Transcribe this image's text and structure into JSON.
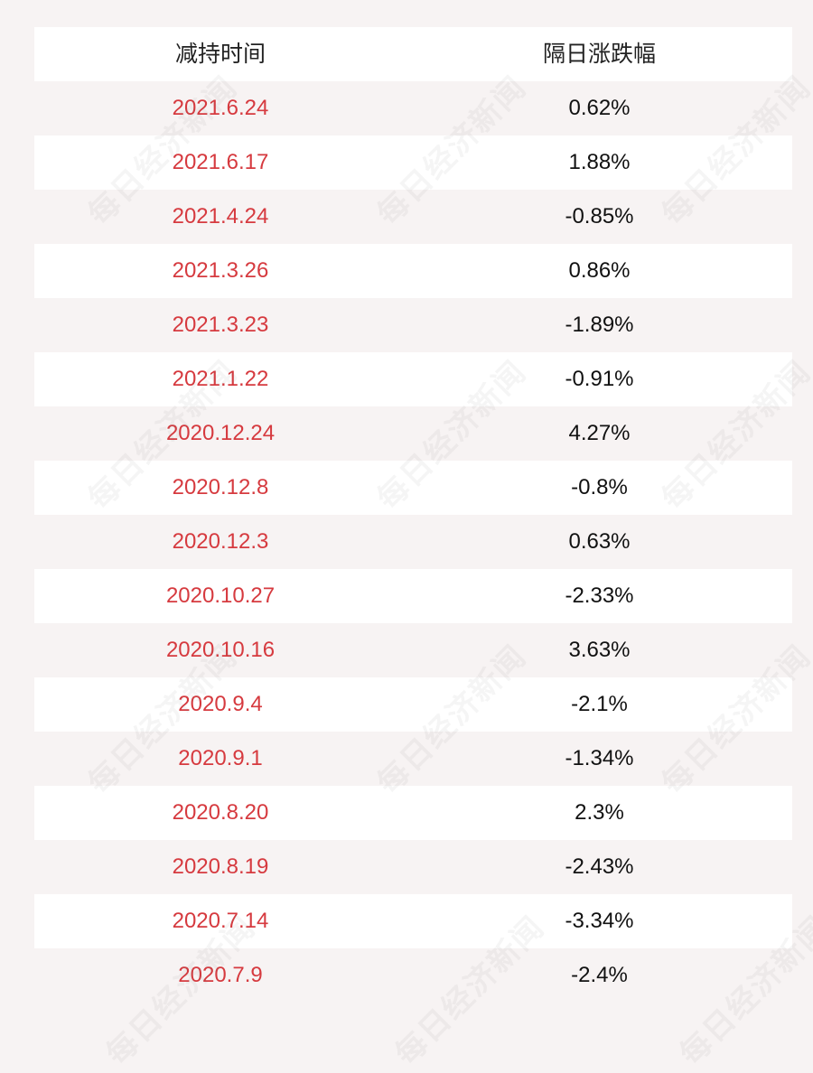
{
  "table": {
    "headers": [
      "减持时间",
      "隔日涨跌幅"
    ],
    "rows": [
      {
        "date": "2021.6.24",
        "change": "0.62%"
      },
      {
        "date": "2021.6.17",
        "change": "1.88%"
      },
      {
        "date": "2021.4.24",
        "change": "-0.85%"
      },
      {
        "date": "2021.3.26",
        "change": "0.86%"
      },
      {
        "date": "2021.3.23",
        "change": "-1.89%"
      },
      {
        "date": "2021.1.22",
        "change": "-0.91%"
      },
      {
        "date": "2020.12.24",
        "change": "4.27%"
      },
      {
        "date": "2020.12.8",
        "change": "-0.8%"
      },
      {
        "date": "2020.12.3",
        "change": "0.63%"
      },
      {
        "date": "2020.10.27",
        "change": "-2.33%"
      },
      {
        "date": "2020.10.16",
        "change": "3.63%"
      },
      {
        "date": "2020.9.4",
        "change": "-2.1%"
      },
      {
        "date": "2020.9.1",
        "change": "-1.34%"
      },
      {
        "date": "2020.8.20",
        "change": "2.3%"
      },
      {
        "date": "2020.8.19",
        "change": "-2.43%"
      },
      {
        "date": "2020.7.14",
        "change": "-3.34%"
      },
      {
        "date": "2020.7.9",
        "change": "-2.4%"
      }
    ]
  },
  "watermark": {
    "text": "每日经济新闻"
  },
  "colors": {
    "date_text": "#d63a3f",
    "value_text": "#111111",
    "stripe": "#ffffff",
    "background": "#f7f3f3"
  }
}
